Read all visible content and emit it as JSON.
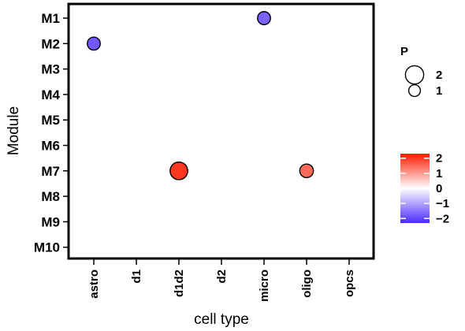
{
  "chart_data": {
    "type": "scatter",
    "title": "",
    "xlabel": "cell type",
    "ylabel": "Module",
    "categories_x": [
      "astro",
      "d1",
      "d1d2",
      "d2",
      "micro",
      "oligo",
      "opcs"
    ],
    "categories_y": [
      "M1",
      "M2",
      "M3",
      "M4",
      "M5",
      "M6",
      "M7",
      "M8",
      "M9",
      "M10"
    ],
    "points": [
      {
        "x": "micro",
        "y": "M1",
        "P": 1.2,
        "value": -1.7
      },
      {
        "x": "astro",
        "y": "M2",
        "P": 1.2,
        "value": -1.8
      },
      {
        "x": "d1d2",
        "y": "M7",
        "P": 1.9,
        "value": 2.0
      },
      {
        "x": "oligo",
        "y": "M7",
        "P": 1.3,
        "value": 1.5
      }
    ],
    "size_legend": {
      "title": "P",
      "entries": [
        {
          "label": "2",
          "value": 2
        },
        {
          "label": "1",
          "value": 1
        }
      ]
    },
    "color_legend": {
      "ticks": [
        {
          "label": "2",
          "value": 2
        },
        {
          "label": "1",
          "value": 1
        },
        {
          "label": "0",
          "value": 0
        },
        {
          "label": "−1",
          "value": -1
        },
        {
          "label": "−2",
          "value": -2
        }
      ],
      "range": [
        -2.3,
        2.3
      ]
    },
    "colors": {
      "low": "#4a2bff",
      "mid": "#ffffff",
      "high": "#ff1a00"
    },
    "grid": false
  }
}
